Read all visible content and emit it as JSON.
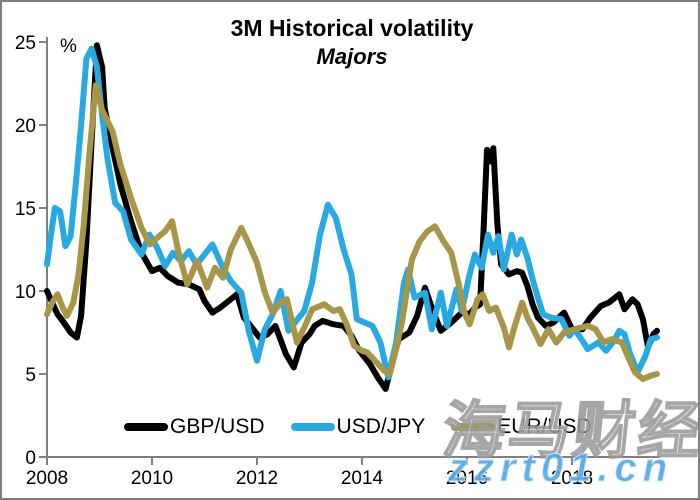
{
  "chart_data": {
    "type": "line",
    "title": "3M Historical volatility",
    "subtitle": "Majors",
    "unit_label": "%",
    "xlim": [
      2008,
      2019.7
    ],
    "ylim": [
      0,
      25
    ],
    "x_ticks": [
      2008,
      2010,
      2012,
      2014,
      2016,
      2018
    ],
    "y_ticks": [
      0,
      5,
      10,
      15,
      20,
      25
    ],
    "grid": false,
    "legend_position": "bottom",
    "axis_color": "#808080",
    "line_width": 6,
    "series": [
      {
        "name": "GBP/USD",
        "label": "GBP/USD",
        "color": "#000000",
        "points": [
          [
            2008.0,
            10.0
          ],
          [
            2008.1,
            9.3
          ],
          [
            2008.2,
            8.6
          ],
          [
            2008.3,
            8.2
          ],
          [
            2008.45,
            7.5
          ],
          [
            2008.57,
            7.2
          ],
          [
            2008.65,
            8.5
          ],
          [
            2008.75,
            13.0
          ],
          [
            2008.85,
            19.0
          ],
          [
            2008.95,
            24.8
          ],
          [
            2009.05,
            23.5
          ],
          [
            2009.1,
            21.0
          ],
          [
            2009.25,
            18.6
          ],
          [
            2009.4,
            16.4
          ],
          [
            2009.6,
            14.2
          ],
          [
            2009.8,
            12.3
          ],
          [
            2010.0,
            11.2
          ],
          [
            2010.15,
            11.4
          ],
          [
            2010.3,
            10.9
          ],
          [
            2010.5,
            10.5
          ],
          [
            2010.7,
            10.4
          ],
          [
            2010.9,
            10.1
          ],
          [
            2011.0,
            9.4
          ],
          [
            2011.15,
            8.7
          ],
          [
            2011.3,
            9.0
          ],
          [
            2011.5,
            9.5
          ],
          [
            2011.62,
            9.8
          ],
          [
            2011.75,
            8.4
          ],
          [
            2011.9,
            7.8
          ],
          [
            2012.05,
            7.2
          ],
          [
            2012.2,
            7.4
          ],
          [
            2012.35,
            7.9
          ],
          [
            2012.55,
            6.2
          ],
          [
            2012.7,
            5.4
          ],
          [
            2012.85,
            6.9
          ],
          [
            2013.0,
            7.4
          ],
          [
            2013.1,
            7.9
          ],
          [
            2013.25,
            8.2
          ],
          [
            2013.45,
            8.0
          ],
          [
            2013.65,
            7.9
          ],
          [
            2013.8,
            7.3
          ],
          [
            2013.95,
            6.4
          ],
          [
            2014.15,
            5.6
          ],
          [
            2014.3,
            4.8
          ],
          [
            2014.45,
            4.1
          ],
          [
            2014.6,
            6.0
          ],
          [
            2014.7,
            7.1
          ],
          [
            2014.9,
            7.5
          ],
          [
            2015.05,
            8.5
          ],
          [
            2015.2,
            10.2
          ],
          [
            2015.35,
            8.8
          ],
          [
            2015.5,
            7.6
          ],
          [
            2015.7,
            8.1
          ],
          [
            2015.9,
            8.7
          ],
          [
            2016.05,
            8.6
          ],
          [
            2016.15,
            9.0
          ],
          [
            2016.25,
            9.2
          ],
          [
            2016.32,
            14.0
          ],
          [
            2016.38,
            18.5
          ],
          [
            2016.45,
            17.8
          ],
          [
            2016.5,
            18.6
          ],
          [
            2016.58,
            14.0
          ],
          [
            2016.65,
            11.6
          ],
          [
            2016.8,
            11.0
          ],
          [
            2016.95,
            11.2
          ],
          [
            2017.05,
            11.1
          ],
          [
            2017.15,
            10.3
          ],
          [
            2017.25,
            9.2
          ],
          [
            2017.35,
            8.4
          ],
          [
            2017.5,
            7.9
          ],
          [
            2017.65,
            8.1
          ],
          [
            2017.85,
            8.7
          ],
          [
            2018.0,
            7.7
          ],
          [
            2018.2,
            7.7
          ],
          [
            2018.35,
            8.4
          ],
          [
            2018.55,
            9.1
          ],
          [
            2018.7,
            9.3
          ],
          [
            2018.9,
            9.8
          ],
          [
            2019.0,
            8.9
          ],
          [
            2019.15,
            9.5
          ],
          [
            2019.25,
            9.2
          ],
          [
            2019.35,
            8.3
          ],
          [
            2019.45,
            6.6
          ],
          [
            2019.55,
            7.4
          ],
          [
            2019.62,
            7.6
          ]
        ]
      },
      {
        "name": "USD/JPY",
        "label": "USD/JPY",
        "color": "#29a9e1",
        "points": [
          [
            2008.0,
            11.6
          ],
          [
            2008.08,
            13.5
          ],
          [
            2008.15,
            15.0
          ],
          [
            2008.25,
            14.8
          ],
          [
            2008.35,
            12.7
          ],
          [
            2008.45,
            13.3
          ],
          [
            2008.55,
            16.5
          ],
          [
            2008.65,
            20.0
          ],
          [
            2008.75,
            24.0
          ],
          [
            2008.85,
            24.6
          ],
          [
            2008.95,
            23.5
          ],
          [
            2009.05,
            20.6
          ],
          [
            2009.15,
            18.0
          ],
          [
            2009.3,
            15.3
          ],
          [
            2009.45,
            14.8
          ],
          [
            2009.6,
            13.1
          ],
          [
            2009.8,
            12.2
          ],
          [
            2009.95,
            13.4
          ],
          [
            2010.1,
            12.6
          ],
          [
            2010.25,
            11.5
          ],
          [
            2010.4,
            12.3
          ],
          [
            2010.55,
            11.8
          ],
          [
            2010.7,
            12.4
          ],
          [
            2010.85,
            11.6
          ],
          [
            2011.0,
            12.2
          ],
          [
            2011.15,
            12.8
          ],
          [
            2011.35,
            11.4
          ],
          [
            2011.5,
            10.6
          ],
          [
            2011.7,
            9.9
          ],
          [
            2011.85,
            7.5
          ],
          [
            2012.0,
            5.8
          ],
          [
            2012.15,
            7.7
          ],
          [
            2012.3,
            8.6
          ],
          [
            2012.45,
            10.0
          ],
          [
            2012.6,
            7.6
          ],
          [
            2012.75,
            8.2
          ],
          [
            2012.9,
            8.8
          ],
          [
            2013.05,
            10.5
          ],
          [
            2013.2,
            13.4
          ],
          [
            2013.35,
            15.2
          ],
          [
            2013.5,
            14.4
          ],
          [
            2013.65,
            12.5
          ],
          [
            2013.8,
            11.0
          ],
          [
            2013.9,
            8.3
          ],
          [
            2014.05,
            8.1
          ],
          [
            2014.2,
            7.9
          ],
          [
            2014.35,
            6.9
          ],
          [
            2014.5,
            4.8
          ],
          [
            2014.65,
            6.9
          ],
          [
            2014.8,
            10.5
          ],
          [
            2014.88,
            11.3
          ],
          [
            2015.0,
            9.6
          ],
          [
            2015.2,
            9.9
          ],
          [
            2015.33,
            7.7
          ],
          [
            2015.5,
            9.9
          ],
          [
            2015.62,
            7.9
          ],
          [
            2015.8,
            10.1
          ],
          [
            2015.9,
            8.8
          ],
          [
            2016.05,
            11.0
          ],
          [
            2016.15,
            12.2
          ],
          [
            2016.28,
            11.4
          ],
          [
            2016.4,
            13.4
          ],
          [
            2016.5,
            12.3
          ],
          [
            2016.6,
            13.3
          ],
          [
            2016.7,
            11.3
          ],
          [
            2016.85,
            13.4
          ],
          [
            2016.95,
            12.2
          ],
          [
            2017.03,
            13.1
          ],
          [
            2017.15,
            12.0
          ],
          [
            2017.25,
            10.7
          ],
          [
            2017.35,
            9.6
          ],
          [
            2017.45,
            8.6
          ],
          [
            2017.6,
            8.4
          ],
          [
            2017.8,
            8.3
          ],
          [
            2017.95,
            7.3
          ],
          [
            2018.05,
            7.7
          ],
          [
            2018.2,
            7.0
          ],
          [
            2018.3,
            6.5
          ],
          [
            2018.5,
            6.9
          ],
          [
            2018.65,
            6.4
          ],
          [
            2018.8,
            7.0
          ],
          [
            2018.9,
            7.6
          ],
          [
            2019.0,
            7.4
          ],
          [
            2019.1,
            6.3
          ],
          [
            2019.25,
            5.1
          ],
          [
            2019.4,
            6.1
          ],
          [
            2019.5,
            7.1
          ],
          [
            2019.62,
            7.2
          ]
        ]
      },
      {
        "name": "EUR/USD",
        "label": "EUR/USD",
        "color": "#a79548",
        "points": [
          [
            2008.0,
            8.6
          ],
          [
            2008.1,
            9.3
          ],
          [
            2008.2,
            9.8
          ],
          [
            2008.3,
            9.0
          ],
          [
            2008.38,
            8.5
          ],
          [
            2008.5,
            9.3
          ],
          [
            2008.6,
            11.0
          ],
          [
            2008.7,
            14.0
          ],
          [
            2008.8,
            18.0
          ],
          [
            2008.93,
            22.4
          ],
          [
            2009.05,
            20.9
          ],
          [
            2009.25,
            19.6
          ],
          [
            2009.4,
            17.6
          ],
          [
            2009.6,
            15.6
          ],
          [
            2009.8,
            13.8
          ],
          [
            2009.96,
            12.8
          ],
          [
            2010.1,
            13.2
          ],
          [
            2010.25,
            13.6
          ],
          [
            2010.38,
            14.2
          ],
          [
            2010.5,
            12.4
          ],
          [
            2010.67,
            10.4
          ],
          [
            2010.86,
            11.8
          ],
          [
            2011.05,
            10.2
          ],
          [
            2011.2,
            11.4
          ],
          [
            2011.35,
            10.8
          ],
          [
            2011.5,
            12.5
          ],
          [
            2011.7,
            13.8
          ],
          [
            2011.85,
            12.8
          ],
          [
            2012.0,
            11.7
          ],
          [
            2012.15,
            9.9
          ],
          [
            2012.3,
            8.7
          ],
          [
            2012.45,
            9.3
          ],
          [
            2012.57,
            9.5
          ],
          [
            2012.76,
            6.9
          ],
          [
            2012.9,
            7.8
          ],
          [
            2013.05,
            8.9
          ],
          [
            2013.28,
            9.2
          ],
          [
            2013.45,
            8.8
          ],
          [
            2013.58,
            8.9
          ],
          [
            2013.72,
            7.9
          ],
          [
            2013.85,
            6.7
          ],
          [
            2014.0,
            6.4
          ],
          [
            2014.1,
            6.3
          ],
          [
            2014.25,
            5.8
          ],
          [
            2014.42,
            5.2
          ],
          [
            2014.53,
            5.0
          ],
          [
            2014.65,
            6.5
          ],
          [
            2014.76,
            8.1
          ],
          [
            2014.95,
            11.9
          ],
          [
            2015.1,
            13.0
          ],
          [
            2015.25,
            13.6
          ],
          [
            2015.39,
            13.9
          ],
          [
            2015.55,
            13.0
          ],
          [
            2015.7,
            12.3
          ],
          [
            2015.85,
            10.3
          ],
          [
            2015.95,
            8.7
          ],
          [
            2016.05,
            8.0
          ],
          [
            2016.2,
            9.5
          ],
          [
            2016.3,
            9.8
          ],
          [
            2016.42,
            8.8
          ],
          [
            2016.55,
            9.0
          ],
          [
            2016.7,
            7.8
          ],
          [
            2016.8,
            6.6
          ],
          [
            2016.9,
            7.8
          ],
          [
            2017.05,
            9.3
          ],
          [
            2017.15,
            8.4
          ],
          [
            2017.25,
            7.8
          ],
          [
            2017.4,
            6.8
          ],
          [
            2017.55,
            7.7
          ],
          [
            2017.7,
            6.9
          ],
          [
            2017.85,
            7.5
          ],
          [
            2018.05,
            7.7
          ],
          [
            2018.3,
            7.9
          ],
          [
            2018.45,
            7.7
          ],
          [
            2018.6,
            6.9
          ],
          [
            2018.75,
            7.1
          ],
          [
            2018.95,
            6.9
          ],
          [
            2019.1,
            5.8
          ],
          [
            2019.2,
            5.1
          ],
          [
            2019.35,
            4.7
          ],
          [
            2019.5,
            4.9
          ],
          [
            2019.62,
            5.0
          ]
        ]
      }
    ]
  },
  "watermark": {
    "brand_text": "海马财经",
    "url_text": "zzrt01.cn"
  }
}
